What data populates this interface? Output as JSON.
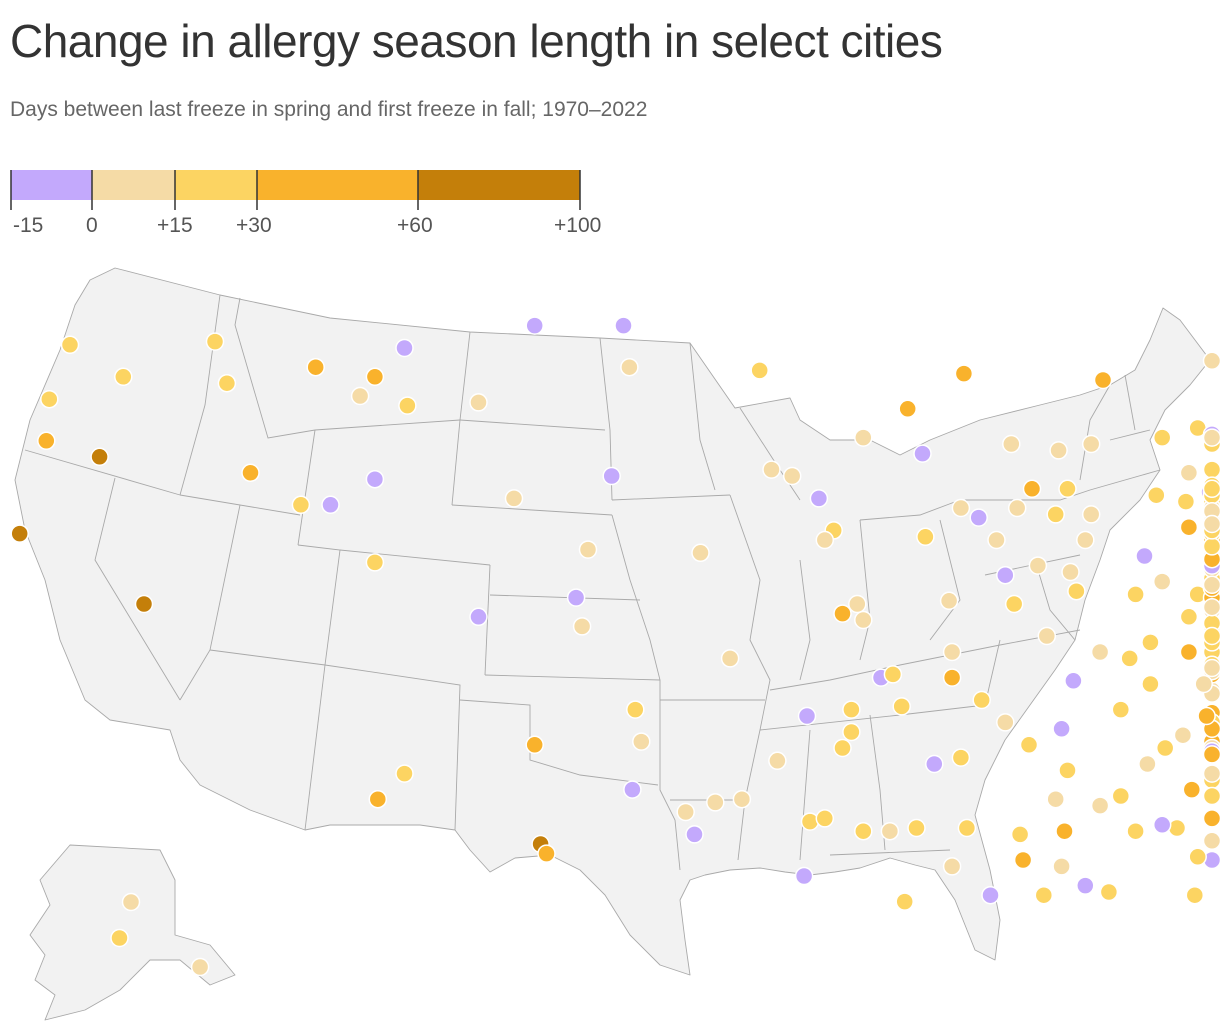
{
  "title": "Change in allergy season length in select cities",
  "subtitle": "Days between last freeze in spring and first freeze in fall; 1970–2022",
  "legend": {
    "segments": [
      {
        "from": -15,
        "to": 0,
        "color": "#c3a9fc"
      },
      {
        "from": 0,
        "to": 15,
        "color": "#f5dba6"
      },
      {
        "from": 15,
        "to": 30,
        "color": "#fcd462"
      },
      {
        "from": 30,
        "to": 60,
        "color": "#f9b22c"
      },
      {
        "from": 60,
        "to": 100,
        "color": "#c47f0a"
      }
    ],
    "tick_labels": [
      "-15",
      "0",
      "+15",
      "+30",
      "+60",
      "+100"
    ]
  },
  "colors": {
    "neg": "#c3a9fc",
    "low": "#f5dba6",
    "mid": "#fcd462",
    "high": "#f9b22c",
    "top": "#c47f0a",
    "land": "#f2f2f2",
    "border": "#a9a9a9"
  },
  "cities": [
    {
      "lon": -122.3,
      "lat": 47.6,
      "cat": "mid"
    },
    {
      "lon": -117.4,
      "lat": 47.7,
      "cat": "mid"
    },
    {
      "lon": -120.5,
      "lat": 46.6,
      "cat": "mid"
    },
    {
      "lon": -123.0,
      "lat": 45.9,
      "cat": "mid"
    },
    {
      "lon": -117.0,
      "lat": 46.4,
      "cat": "mid"
    },
    {
      "lon": -123.1,
      "lat": 44.6,
      "cat": "high"
    },
    {
      "lon": -121.3,
      "lat": 44.1,
      "cat": "top"
    },
    {
      "lon": -124.0,
      "lat": 41.7,
      "cat": "top"
    },
    {
      "lon": -119.8,
      "lat": 39.5,
      "cat": "top"
    },
    {
      "lon": -114.0,
      "lat": 46.9,
      "cat": "high"
    },
    {
      "lon": -112.0,
      "lat": 46.6,
      "cat": "high"
    },
    {
      "lon": -111.0,
      "lat": 47.5,
      "cat": "neg"
    },
    {
      "lon": -112.5,
      "lat": 46.0,
      "cat": "low"
    },
    {
      "lon": -110.9,
      "lat": 45.7,
      "cat": "mid"
    },
    {
      "lon": -108.5,
      "lat": 45.8,
      "cat": "low"
    },
    {
      "lon": -106.6,
      "lat": 48.2,
      "cat": "neg"
    },
    {
      "lon": -103.6,
      "lat": 48.2,
      "cat": "neg"
    },
    {
      "lon": -103.4,
      "lat": 46.9,
      "cat": "low"
    },
    {
      "lon": -116.2,
      "lat": 43.6,
      "cat": "high"
    },
    {
      "lon": -114.5,
      "lat": 42.6,
      "cat": "mid"
    },
    {
      "lon": -113.5,
      "lat": 42.6,
      "cat": "neg"
    },
    {
      "lon": -112.0,
      "lat": 43.4,
      "cat": "neg"
    },
    {
      "lon": -112.0,
      "lat": 40.8,
      "cat": "mid"
    },
    {
      "lon": -107.3,
      "lat": 42.8,
      "cat": "low"
    },
    {
      "lon": -104.0,
      "lat": 43.5,
      "cat": "neg"
    },
    {
      "lon": -104.8,
      "lat": 41.2,
      "cat": "low"
    },
    {
      "lon": -108.5,
      "lat": 39.1,
      "cat": "neg"
    },
    {
      "lon": -105.2,
      "lat": 39.7,
      "cat": "neg"
    },
    {
      "lon": -105.0,
      "lat": 38.8,
      "cat": "low"
    },
    {
      "lon": -101.0,
      "lat": 41.1,
      "cat": "low"
    },
    {
      "lon": -99.0,
      "lat": 46.8,
      "cat": "mid"
    },
    {
      "lon": -98.6,
      "lat": 43.7,
      "cat": "low"
    },
    {
      "lon": -97.9,
      "lat": 43.5,
      "cat": "low"
    },
    {
      "lon": -97.0,
      "lat": 42.8,
      "cat": "neg"
    },
    {
      "lon": -96.5,
      "lat": 41.8,
      "cat": "mid"
    },
    {
      "lon": -96.8,
      "lat": 41.5,
      "cat": "low"
    },
    {
      "lon": -100.0,
      "lat": 37.8,
      "cat": "low"
    },
    {
      "lon": -96.2,
      "lat": 39.2,
      "cat": "high"
    },
    {
      "lon": -95.7,
      "lat": 39.5,
      "cat": "low"
    },
    {
      "lon": -95.5,
      "lat": 39.0,
      "cat": "low"
    },
    {
      "lon": -94.9,
      "lat": 37.2,
      "cat": "neg"
    },
    {
      "lon": -94.5,
      "lat": 37.3,
      "cat": "mid"
    },
    {
      "lon": -111.9,
      "lat": 33.4,
      "cat": "high"
    },
    {
      "lon": -111.0,
      "lat": 34.2,
      "cat": "mid"
    },
    {
      "lon": -106.6,
      "lat": 35.1,
      "cat": "high"
    },
    {
      "lon": -106.4,
      "lat": 32.0,
      "cat": "top"
    },
    {
      "lon": -106.2,
      "lat": 31.7,
      "cat": "high"
    },
    {
      "lon": -103.2,
      "lat": 36.2,
      "cat": "mid"
    },
    {
      "lon": -103.0,
      "lat": 35.2,
      "cat": "low"
    },
    {
      "lon": -103.3,
      "lat": 33.7,
      "cat": "neg"
    },
    {
      "lon": -101.5,
      "lat": 33.0,
      "cat": "low"
    },
    {
      "lon": -100.5,
      "lat": 33.3,
      "cat": "low"
    },
    {
      "lon": -101.2,
      "lat": 32.3,
      "cat": "neg"
    },
    {
      "lon": -98.4,
      "lat": 34.6,
      "cat": "low"
    },
    {
      "lon": -97.4,
      "lat": 36.0,
      "cat": "neg"
    },
    {
      "lon": -95.9,
      "lat": 36.2,
      "cat": "mid"
    },
    {
      "lon": -95.9,
      "lat": 35.5,
      "cat": "mid"
    },
    {
      "lon": -96.2,
      "lat": 35.0,
      "cat": "mid"
    },
    {
      "lon": -97.3,
      "lat": 32.7,
      "cat": "mid"
    },
    {
      "lon": -96.8,
      "lat": 32.8,
      "cat": "mid"
    },
    {
      "lon": -95.5,
      "lat": 32.4,
      "cat": "mid"
    },
    {
      "lon": -94.6,
      "lat": 32.4,
      "cat": "low"
    },
    {
      "lon": -97.5,
      "lat": 31.0,
      "cat": "neg"
    },
    {
      "lon": -99.6,
      "lat": 33.4,
      "cat": "low"
    },
    {
      "lon": -94.1,
      "lat": 30.2,
      "cat": "mid"
    },
    {
      "lon": -92.2,
      "lat": 34.7,
      "cat": "mid"
    },
    {
      "lon": -92.5,
      "lat": 37.2,
      "cat": "high"
    },
    {
      "lon": -92.5,
      "lat": 38.0,
      "cat": "low"
    },
    {
      "lon": -92.6,
      "lat": 39.6,
      "cat": "low"
    },
    {
      "lon": -93.4,
      "lat": 41.6,
      "cat": "mid"
    },
    {
      "lon": -92.2,
      "lat": 42.5,
      "cat": "low"
    },
    {
      "lon": -91.6,
      "lat": 42.2,
      "cat": "neg"
    },
    {
      "lon": -91.0,
      "lat": 41.5,
      "cat": "low"
    },
    {
      "lon": -90.7,
      "lat": 40.4,
      "cat": "neg"
    },
    {
      "lon": -90.4,
      "lat": 39.5,
      "cat": "mid"
    },
    {
      "lon": -89.6,
      "lat": 40.7,
      "cat": "low"
    },
    {
      "lon": -88.3,
      "lat": 39.9,
      "cat": "mid"
    },
    {
      "lon": -88.0,
      "lat": 41.5,
      "cat": "low"
    },
    {
      "lon": -88.5,
      "lat": 40.5,
      "cat": "low"
    },
    {
      "lon": -89.3,
      "lat": 38.5,
      "cat": "low"
    },
    {
      "lon": -88.4,
      "lat": 37.1,
      "cat": "neg"
    },
    {
      "lon": -87.5,
      "lat": 38.0,
      "cat": "low"
    },
    {
      "lon": -85.8,
      "lat": 38.3,
      "cat": "mid"
    },
    {
      "lon": -86.3,
      "lat": 39.8,
      "cat": "mid"
    },
    {
      "lon": -85.4,
      "lat": 40.2,
      "cat": "low"
    },
    {
      "lon": -86.0,
      "lat": 41.0,
      "cat": "neg"
    },
    {
      "lon": -87.8,
      "lat": 42.3,
      "cat": "low"
    },
    {
      "lon": -89.0,
      "lat": 42.3,
      "cat": "mid"
    },
    {
      "lon": -90.3,
      "lat": 42.5,
      "cat": "low"
    },
    {
      "lon": -89.8,
      "lat": 43.1,
      "cat": "high"
    },
    {
      "lon": -88.6,
      "lat": 43.1,
      "cat": "mid"
    },
    {
      "lon": -90.5,
      "lat": 44.5,
      "cat": "low"
    },
    {
      "lon": -88.9,
      "lat": 44.3,
      "cat": "low"
    },
    {
      "lon": -87.8,
      "lat": 44.5,
      "cat": "low"
    },
    {
      "lon": -92.1,
      "lat": 46.7,
      "cat": "high"
    },
    {
      "lon": -94.0,
      "lat": 45.6,
      "cat": "high"
    },
    {
      "lon": -95.5,
      "lat": 44.7,
      "cat": "low"
    },
    {
      "lon": -93.5,
      "lat": 44.2,
      "cat": "neg"
    },
    {
      "lon": -87.4,
      "lat": 46.5,
      "cat": "high"
    },
    {
      "lon": -85.4,
      "lat": 44.7,
      "cat": "mid"
    },
    {
      "lon": -84.2,
      "lat": 45.0,
      "cat": "mid"
    },
    {
      "lon": -84.5,
      "lat": 43.6,
      "cat": "low"
    },
    {
      "lon": -83.8,
      "lat": 43.0,
      "cat": "neg"
    },
    {
      "lon": -85.6,
      "lat": 42.9,
      "cat": "mid"
    },
    {
      "lon": -84.6,
      "lat": 42.7,
      "cat": "mid"
    },
    {
      "lon": -83.5,
      "lat": 42.3,
      "cat": "mid"
    },
    {
      "lon": -84.5,
      "lat": 41.9,
      "cat": "high"
    },
    {
      "lon": -83.5,
      "lat": 41.6,
      "cat": "mid"
    },
    {
      "lon": -82.8,
      "lat": 41.4,
      "cat": "low"
    },
    {
      "lon": -81.7,
      "lat": 41.5,
      "cat": "high"
    },
    {
      "lon": -81.5,
      "lat": 41.1,
      "cat": "low"
    },
    {
      "lon": -80.6,
      "lat": 41.0,
      "cat": "low"
    },
    {
      "lon": -82.9,
      "lat": 40.0,
      "cat": "high"
    },
    {
      "lon": -81.9,
      "lat": 40.0,
      "cat": "mid"
    },
    {
      "lon": -84.2,
      "lat": 39.8,
      "cat": "mid"
    },
    {
      "lon": -84.5,
      "lat": 39.1,
      "cat": "mid"
    },
    {
      "lon": -80.0,
      "lat": 40.4,
      "cat": "high"
    },
    {
      "lon": -79.9,
      "lat": 39.6,
      "cat": "neg"
    },
    {
      "lon": -81.6,
      "lat": 38.3,
      "cat": "low"
    },
    {
      "lon": -80.2,
      "lat": 37.6,
      "cat": "low"
    },
    {
      "lon": -79.2,
      "lat": 38.0,
      "cat": "mid"
    },
    {
      "lon": -80.5,
      "lat": 38.8,
      "cat": "mid"
    },
    {
      "lon": -78.5,
      "lat": 38.0,
      "cat": "mid"
    },
    {
      "lon": -77.4,
      "lat": 37.6,
      "cat": "mid"
    },
    {
      "lon": -76.3,
      "lat": 36.8,
      "cat": "low"
    },
    {
      "lon": -79.9,
      "lat": 37.3,
      "cat": "high"
    },
    {
      "lon": -79.0,
      "lat": 37.4,
      "cat": "low"
    },
    {
      "lon": -77.5,
      "lat": 38.3,
      "cat": "mid"
    },
    {
      "lon": -76.6,
      "lat": 39.3,
      "cat": "low"
    },
    {
      "lon": -77.1,
      "lat": 38.9,
      "cat": "mid"
    },
    {
      "lon": -75.5,
      "lat": 38.5,
      "cat": "mid"
    },
    {
      "lon": -75.6,
      "lat": 39.7,
      "cat": "high"
    },
    {
      "lon": -76.9,
      "lat": 40.3,
      "cat": "mid"
    },
    {
      "lon": -76.3,
      "lat": 40.0,
      "cat": "low"
    },
    {
      "lon": -77.9,
      "lat": 40.8,
      "cat": "low"
    },
    {
      "lon": -78.7,
      "lat": 41.7,
      "cat": "mid"
    },
    {
      "lon": -76.0,
      "lat": 41.3,
      "cat": "low"
    },
    {
      "lon": -75.4,
      "lat": 40.6,
      "cat": "low"
    },
    {
      "lon": -75.2,
      "lat": 40.0,
      "cat": "high"
    },
    {
      "lon": -74.2,
      "lat": 40.7,
      "cat": "neg"
    },
    {
      "lon": -74.4,
      "lat": 40.1,
      "cat": "low"
    },
    {
      "lon": -73.8,
      "lat": 40.9,
      "cat": "high"
    },
    {
      "lon": -74.6,
      "lat": 39.4,
      "cat": "low"
    },
    {
      "lon": -72.9,
      "lat": 41.3,
      "cat": "mid"
    },
    {
      "lon": -73.7,
      "lat": 42.7,
      "cat": "mid"
    },
    {
      "lon": -73.1,
      "lat": 42.1,
      "cat": "mid"
    },
    {
      "lon": -72.6,
      "lat": 42.1,
      "cat": "mid"
    },
    {
      "lon": -71.4,
      "lat": 41.8,
      "cat": "mid"
    },
    {
      "lon": -71.1,
      "lat": 42.3,
      "cat": "mid"
    },
    {
      "lon": -70.9,
      "lat": 42.5,
      "cat": "low"
    },
    {
      "lon": -71.4,
      "lat": 43.0,
      "cat": "high"
    },
    {
      "lon": -71.2,
      "lat": 43.1,
      "cat": "high"
    },
    {
      "lon": -70.3,
      "lat": 43.7,
      "cat": "mid"
    },
    {
      "lon": -73.2,
      "lat": 44.5,
      "cat": "mid"
    },
    {
      "lon": -69.0,
      "lat": 47.1,
      "cat": "low"
    },
    {
      "lon": -68.8,
      "lat": 44.8,
      "cat": "neg"
    },
    {
      "lon": -76.1,
      "lat": 43.0,
      "cat": "mid"
    },
    {
      "lon": -77.6,
      "lat": 43.2,
      "cat": "mid"
    },
    {
      "lon": -78.9,
      "lat": 42.9,
      "cat": "mid"
    },
    {
      "lon": -74.9,
      "lat": 43.1,
      "cat": "mid"
    },
    {
      "lon": -75.9,
      "lat": 42.1,
      "cat": "low"
    },
    {
      "lon": -76.5,
      "lat": 42.4,
      "cat": "low"
    },
    {
      "lon": -75.2,
      "lat": 44.7,
      "cat": "low"
    },
    {
      "lon": -74.0,
      "lat": 42.0,
      "cat": "low"
    },
    {
      "lon": -79.8,
      "lat": 36.1,
      "cat": "high"
    },
    {
      "lon": -78.6,
      "lat": 35.8,
      "cat": "mid"
    },
    {
      "lon": -77.4,
      "lat": 35.6,
      "cat": "mid"
    },
    {
      "lon": -80.8,
      "lat": 35.2,
      "cat": "high"
    },
    {
      "lon": -82.5,
      "lat": 35.6,
      "cat": "high"
    },
    {
      "lon": -78.9,
      "lat": 35.0,
      "cat": "low"
    },
    {
      "lon": -77.9,
      "lat": 34.2,
      "cat": "low"
    },
    {
      "lon": -81.0,
      "lat": 34.0,
      "cat": "mid"
    },
    {
      "lon": -79.9,
      "lat": 32.8,
      "cat": "high"
    },
    {
      "lon": -81.6,
      "lat": 34.9,
      "cat": "neg"
    },
    {
      "lon": -82.4,
      "lat": 34.8,
      "cat": "high"
    },
    {
      "lon": -80.0,
      "lat": 34.2,
      "cat": "low"
    },
    {
      "lon": -84.4,
      "lat": 33.7,
      "cat": "high"
    },
    {
      "lon": -83.6,
      "lat": 32.8,
      "cat": "high"
    },
    {
      "lon": -82.0,
      "lat": 33.5,
      "cat": "mid"
    },
    {
      "lon": -81.1,
      "lat": 32.1,
      "cat": "low"
    },
    {
      "lon": -84.9,
      "lat": 32.5,
      "cat": "mid"
    },
    {
      "lon": -83.3,
      "lat": 31.5,
      "cat": "neg"
    },
    {
      "lon": -84.2,
      "lat": 31.6,
      "cat": "mid"
    },
    {
      "lon": -85.4,
      "lat": 32.6,
      "cat": "neg"
    },
    {
      "lon": -84.3,
      "lat": 30.4,
      "cat": "mid"
    },
    {
      "lon": -86.8,
      "lat": 33.5,
      "cat": "mid"
    },
    {
      "lon": -86.3,
      "lat": 32.4,
      "cat": "mid"
    },
    {
      "lon": -87.5,
      "lat": 33.2,
      "cat": "low"
    },
    {
      "lon": -85.9,
      "lat": 34.5,
      "cat": "low"
    },
    {
      "lon": -88.0,
      "lat": 30.7,
      "cat": "neg"
    },
    {
      "lon": -87.2,
      "lat": 30.5,
      "cat": "mid"
    },
    {
      "lon": -85.3,
      "lat": 35.0,
      "cat": "mid"
    },
    {
      "lon": -86.8,
      "lat": 36.2,
      "cat": "mid"
    },
    {
      "lon": -83.9,
      "lat": 36.0,
      "cat": "high"
    },
    {
      "lon": -84.7,
      "lat": 35.4,
      "cat": "low"
    },
    {
      "lon": -88.8,
      "lat": 35.6,
      "cat": "neg"
    },
    {
      "lon": -89.9,
      "lat": 35.1,
      "cat": "mid"
    },
    {
      "lon": -85.8,
      "lat": 37.0,
      "cat": "mid"
    },
    {
      "lon": -84.5,
      "lat": 38.0,
      "cat": "high"
    },
    {
      "lon": -83.2,
      "lat": 37.5,
      "cat": "low"
    },
    {
      "lon": -82.5,
      "lat": 36.7,
      "cat": "low"
    },
    {
      "lon": -86.5,
      "lat": 37.8,
      "cat": "mid"
    },
    {
      "lon": -84.0,
      "lat": 37.0,
      "cat": "low"
    },
    {
      "lon": -88.6,
      "lat": 34.3,
      "cat": "mid"
    },
    {
      "lon": -89.0,
      "lat": 33.4,
      "cat": "low"
    },
    {
      "lon": -90.2,
      "lat": 32.3,
      "cat": "mid"
    },
    {
      "lon": -88.7,
      "lat": 32.4,
      "cat": "high"
    },
    {
      "lon": -88.8,
      "lat": 31.3,
      "cat": "low"
    },
    {
      "lon": -89.4,
      "lat": 30.4,
      "cat": "mid"
    },
    {
      "lon": -90.1,
      "lat": 31.5,
      "cat": "high"
    },
    {
      "lon": -91.2,
      "lat": 30.4,
      "cat": "neg"
    },
    {
      "lon": -92.0,
      "lat": 32.5,
      "cat": "mid"
    },
    {
      "lon": -93.7,
      "lat": 32.5,
      "cat": "mid"
    },
    {
      "lon": -92.5,
      "lat": 31.3,
      "cat": "low"
    },
    {
      "lon": -90.7,
      "lat": 35.8,
      "cat": "low"
    },
    {
      "lon": -91.5,
      "lat": 36.5,
      "cat": "mid"
    },
    {
      "lon": -94.2,
      "lat": 36.3,
      "cat": "mid"
    },
    {
      "lon": -93.1,
      "lat": 34.5,
      "cat": "neg"
    },
    {
      "lon": -147.7,
      "lat": 64.8,
      "cat": "low"
    },
    {
      "lon": -149.9,
      "lat": 61.2,
      "cat": "mid"
    },
    {
      "lon": -134.4,
      "lat": 58.3,
      "cat": "low"
    }
  ]
}
